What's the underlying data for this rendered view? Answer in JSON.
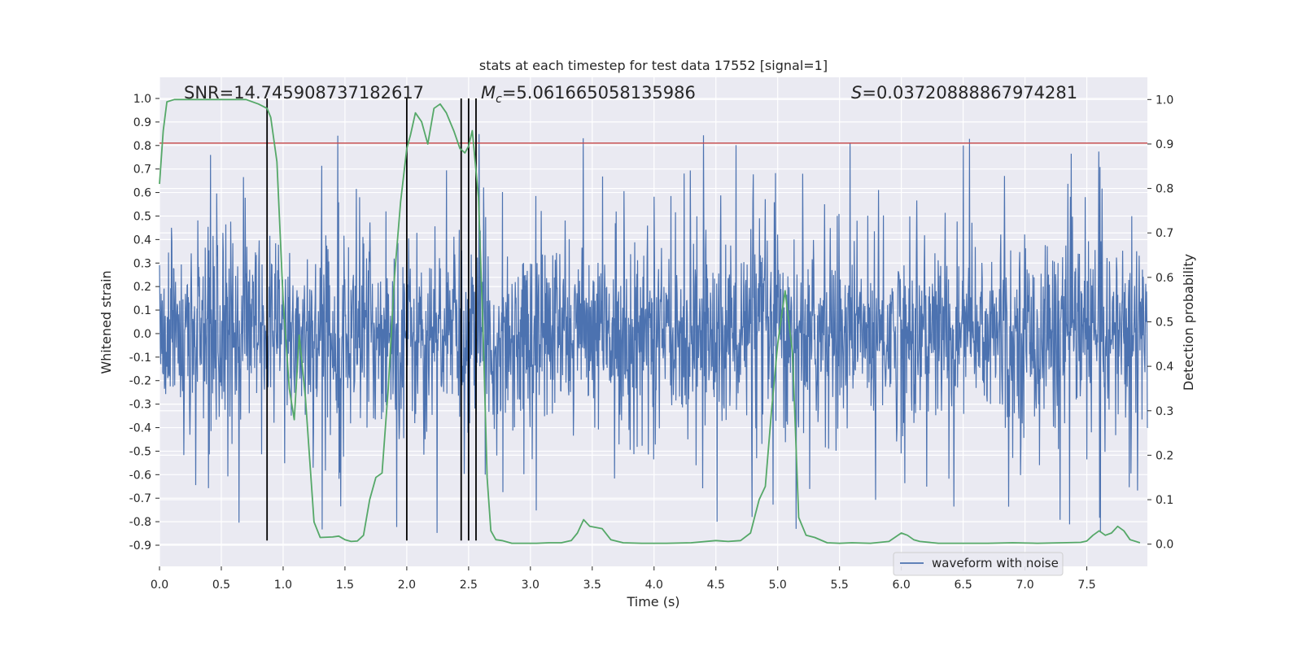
{
  "chart_data": {
    "type": "line",
    "title": "stats at each timestep for test data 17552 [signal=1]",
    "xlabel": "Time (s)",
    "ylabel_left": "Whitened strain",
    "ylabel_right": "Detection probability",
    "xlim": [
      0,
      7.99
    ],
    "ylim_left": [
      -0.99,
      1.09
    ],
    "ylim_right": [
      -0.05,
      1.05
    ],
    "x_ticks": [
      "0.0",
      "0.5",
      "1.0",
      "1.5",
      "2.0",
      "2.5",
      "3.0",
      "3.5",
      "4.0",
      "4.5",
      "5.0",
      "5.5",
      "6.0",
      "6.5",
      "7.0",
      "7.5"
    ],
    "y_ticks_left": [
      "1.0",
      "0.9",
      "0.8",
      "0.7",
      "0.6",
      "0.5",
      "0.4",
      "0.3",
      "0.2",
      "0.1",
      "0.0",
      "-0.1",
      "-0.2",
      "-0.3",
      "-0.4",
      "-0.5",
      "-0.6",
      "-0.7",
      "-0.8",
      "-0.9"
    ],
    "y_ticks_right": [
      "1.0",
      "0.9",
      "0.8",
      "0.7",
      "0.6",
      "0.5",
      "0.4",
      "0.3",
      "0.2",
      "0.1",
      "0.0"
    ],
    "grid": true,
    "legend_position": "lower-right",
    "annotations": {
      "snr": "SNR=14.745908737182617",
      "mc_symbol": "M",
      "mc_subscript": "c",
      "mc_value": "=5.061665058135986",
      "s_symbol": "S",
      "s_value": "=0.03720888867974281"
    },
    "series": [
      {
        "name": "waveform with noise",
        "axis": "left",
        "color": "#4c72b0",
        "description": "dense noisy whitened strain, roughly within ±0.3 band with spikes up to ~1.0 and down to ~-0.88"
      },
      {
        "axis": "right",
        "color": "#55a868",
        "x": [
          0.0,
          0.03,
          0.06,
          0.12,
          0.2,
          0.3,
          0.4,
          0.5,
          0.6,
          0.7,
          0.8,
          0.87,
          0.9,
          0.95,
          1.0,
          1.05,
          1.09,
          1.13,
          1.18,
          1.25,
          1.3,
          1.4,
          1.45,
          1.5,
          1.55,
          1.6,
          1.65,
          1.7,
          1.75,
          1.8,
          1.85,
          1.9,
          1.95,
          2.0,
          2.03,
          2.07,
          2.12,
          2.17,
          2.22,
          2.27,
          2.32,
          2.38,
          2.43,
          2.47,
          2.5,
          2.53,
          2.58,
          2.62,
          2.65,
          2.68,
          2.72,
          2.77,
          2.85,
          2.95,
          3.05,
          3.15,
          3.25,
          3.33,
          3.38,
          3.43,
          3.48,
          3.58,
          3.65,
          3.75,
          3.9,
          4.1,
          4.3,
          4.5,
          4.6,
          4.7,
          4.78,
          4.85,
          4.9,
          4.95,
          5.0,
          5.06,
          5.12,
          5.17,
          5.23,
          5.3,
          5.4,
          5.5,
          5.6,
          5.75,
          5.9,
          6.0,
          6.05,
          6.1,
          6.15,
          6.3,
          6.5,
          6.7,
          6.9,
          7.1,
          7.3,
          7.45,
          7.5,
          7.55,
          7.6,
          7.65,
          7.7,
          7.75,
          7.8,
          7.85,
          7.93
        ],
        "y": [
          0.81,
          0.93,
          0.995,
          1.0,
          1.0,
          1.0,
          1.0,
          1.0,
          1.0,
          1.0,
          0.99,
          0.98,
          0.96,
          0.86,
          0.55,
          0.35,
          0.28,
          0.47,
          0.33,
          0.05,
          0.015,
          0.016,
          0.018,
          0.01,
          0.006,
          0.007,
          0.02,
          0.1,
          0.15,
          0.16,
          0.35,
          0.6,
          0.77,
          0.89,
          0.92,
          0.97,
          0.95,
          0.9,
          0.98,
          0.99,
          0.97,
          0.93,
          0.89,
          0.88,
          0.895,
          0.93,
          0.78,
          0.45,
          0.15,
          0.03,
          0.01,
          0.008,
          0.002,
          0.002,
          0.002,
          0.003,
          0.003,
          0.008,
          0.025,
          0.055,
          0.04,
          0.035,
          0.01,
          0.003,
          0.002,
          0.002,
          0.003,
          0.008,
          0.006,
          0.008,
          0.025,
          0.1,
          0.13,
          0.3,
          0.45,
          0.57,
          0.43,
          0.06,
          0.02,
          0.015,
          0.003,
          0.002,
          0.003,
          0.002,
          0.006,
          0.025,
          0.02,
          0.01,
          0.006,
          0.002,
          0.002,
          0.002,
          0.003,
          0.002,
          0.003,
          0.004,
          0.007,
          0.02,
          0.03,
          0.02,
          0.025,
          0.04,
          0.03,
          0.01,
          0.003
        ]
      }
    ],
    "threshold_line": {
      "axis": "left",
      "y": 0.81,
      "color": "#c44e52"
    },
    "vertical_lines_x": [
      0.87,
      2.0,
      2.44,
      2.5,
      2.56
    ],
    "vertical_line_color": "#000000"
  }
}
